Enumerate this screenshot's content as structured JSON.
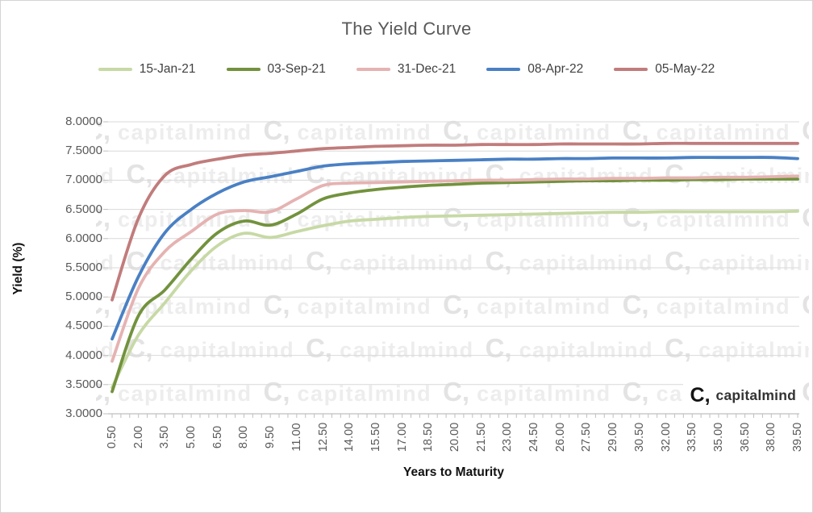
{
  "title": "The Yield Curve",
  "watermark": {
    "glyph": "C,",
    "text": "capitalmind"
  },
  "logo": {
    "glyph": "C,",
    "text": "capitalmind"
  },
  "chart_data": {
    "type": "line",
    "title": "The Yield Curve",
    "xlabel": "Years to Maturity",
    "ylabel": "Yield (%)",
    "ylim": [
      3.0,
      8.0
    ],
    "ytick_step": 0.5,
    "grid": true,
    "legend_position": "top",
    "y_tick_labels": [
      "8.0000",
      "7.5000",
      "7.0000",
      "6.5000",
      "6.0000",
      "5.5000",
      "5.0000",
      "4.5000",
      "4.0000",
      "3.5000",
      "3.0000"
    ],
    "x": [
      0.5,
      2.0,
      3.5,
      5.0,
      6.5,
      8.0,
      9.5,
      11.0,
      12.5,
      14.0,
      15.5,
      17.0,
      18.5,
      20.0,
      21.5,
      23.0,
      24.5,
      26.0,
      27.5,
      29.0,
      30.5,
      32.0,
      33.5,
      35.0,
      36.5,
      38.0,
      39.5
    ],
    "x_tick_labels": [
      "0.50",
      "2.00",
      "3.50",
      "5.00",
      "6.50",
      "8.00",
      "9.50",
      "11.00",
      "12.50",
      "14.00",
      "15.50",
      "17.00",
      "18.50",
      "20.00",
      "21.50",
      "23.00",
      "24.50",
      "26.00",
      "27.50",
      "29.00",
      "30.50",
      "32.00",
      "33.50",
      "35.00",
      "36.50",
      "38.00",
      "39.50"
    ],
    "series": [
      {
        "name": "15-Jan-21",
        "color": "#c7d9a5",
        "values": [
          3.45,
          4.35,
          4.9,
          5.45,
          5.88,
          6.09,
          6.02,
          6.12,
          6.22,
          6.3,
          6.33,
          6.36,
          6.38,
          6.39,
          6.4,
          6.41,
          6.42,
          6.43,
          6.44,
          6.45,
          6.45,
          6.46,
          6.46,
          6.46,
          6.46,
          6.46,
          6.47
        ]
      },
      {
        "name": "03-Sep-21",
        "color": "#72923d",
        "values": [
          3.38,
          4.68,
          5.12,
          5.65,
          6.1,
          6.3,
          6.23,
          6.42,
          6.68,
          6.78,
          6.84,
          6.88,
          6.91,
          6.93,
          6.95,
          6.96,
          6.97,
          6.98,
          6.99,
          6.99,
          7.0,
          7.0,
          7.01,
          7.01,
          7.02,
          7.02,
          7.02
        ]
      },
      {
        "name": "31-Dec-21",
        "color": "#e5b3b2",
        "values": [
          3.9,
          5.15,
          5.78,
          6.12,
          6.42,
          6.48,
          6.46,
          6.68,
          6.91,
          6.95,
          6.96,
          6.97,
          6.98,
          6.99,
          7.0,
          7.0,
          7.01,
          7.02,
          7.02,
          7.03,
          7.03,
          7.04,
          7.04,
          7.05,
          7.05,
          7.06,
          7.07
        ]
      },
      {
        "name": "08-Apr-22",
        "color": "#4a80c4",
        "values": [
          4.28,
          5.35,
          6.1,
          6.5,
          6.78,
          6.97,
          7.06,
          7.15,
          7.24,
          7.28,
          7.3,
          7.32,
          7.33,
          7.34,
          7.35,
          7.36,
          7.36,
          7.37,
          7.37,
          7.38,
          7.38,
          7.38,
          7.39,
          7.39,
          7.39,
          7.39,
          7.37
        ]
      },
      {
        "name": "05-May-22",
        "color": "#c17c7c",
        "values": [
          4.95,
          6.35,
          7.08,
          7.27,
          7.36,
          7.43,
          7.46,
          7.5,
          7.54,
          7.56,
          7.58,
          7.59,
          7.6,
          7.6,
          7.61,
          7.61,
          7.61,
          7.62,
          7.62,
          7.62,
          7.62,
          7.63,
          7.63,
          7.63,
          7.63,
          7.63,
          7.63
        ]
      }
    ]
  }
}
